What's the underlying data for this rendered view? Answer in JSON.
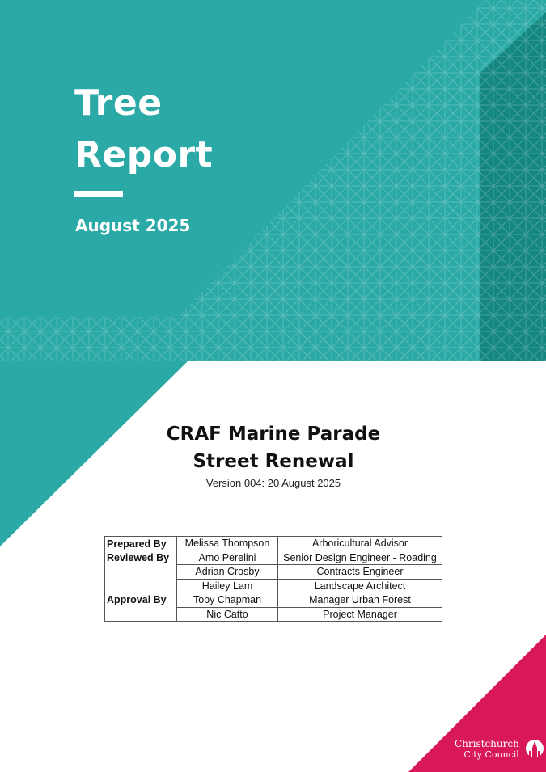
{
  "cover": {
    "title_lines": [
      "Tree",
      "Report"
    ],
    "date": "August 2025",
    "colors": {
      "teal": "#2aa9a6",
      "teal_dark": "#148781",
      "pink": "#d8185b"
    }
  },
  "project": {
    "title_lines": [
      "CRAF Marine Parade",
      "Street Renewal"
    ],
    "version": "Version 004: 20 August 2025"
  },
  "signoff": {
    "rows": [
      {
        "role": "Prepared By",
        "name": "Melissa Thompson",
        "position": "Arboricultural Advisor"
      },
      {
        "role": "Reviewed By",
        "name": "Amo Perelini",
        "position": "Senior Design Engineer - Roading"
      },
      {
        "role": "",
        "name": "Adrian Crosby",
        "position": "Contracts Engineer"
      },
      {
        "role": "",
        "name": "Hailey Lam",
        "position": "Landscape Architect"
      },
      {
        "role": "Approval By",
        "name": "Toby Chapman",
        "position": "Manager Urban Forest"
      },
      {
        "role": "",
        "name": "Nic Catto",
        "position": "Project Manager"
      }
    ]
  },
  "logo": {
    "line1": "Christchurch",
    "line2": "City Council",
    "icon": "cathedral-icon"
  }
}
